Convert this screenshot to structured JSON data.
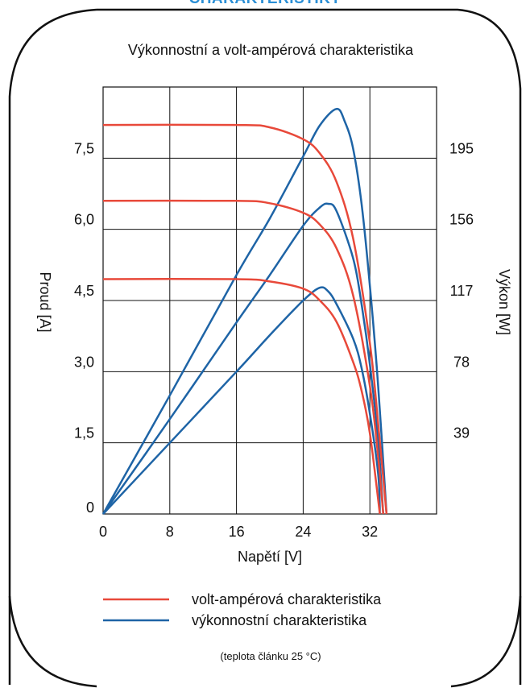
{
  "banner": "CHARAKTERISTIKY",
  "chart_data": {
    "type": "line",
    "title": "Výkonnostní a volt-ampérová charakteristika",
    "xlabel": "Napětí [V]",
    "ylabel_left": "Proud [A]",
    "ylabel_right": "Výkon [W]",
    "xlim": [
      0,
      40
    ],
    "ylim_left": [
      0,
      9
    ],
    "ylim_right": [
      0,
      234
    ],
    "x_ticks": [
      "0",
      "8",
      "16",
      "24",
      "32"
    ],
    "y_ticks_left": [
      "0",
      "1,5",
      "3,0",
      "4,5",
      "6,0",
      "7,5"
    ],
    "y_ticks_right": [
      "39",
      "78",
      "117",
      "156",
      "195"
    ],
    "grid": true,
    "legend_position": "bottom",
    "legend": [
      {
        "label": "volt-ampérová charakteristika",
        "color": "#e8493a"
      },
      {
        "label": "výkonnostní charakteristika",
        "color": "#1e64a6"
      }
    ],
    "note": "(teplota článku 25 °C)",
    "iv_series": [
      {
        "isc": 8.2,
        "voc": 34.0,
        "points": [
          [
            0,
            8.2
          ],
          [
            16,
            8.2
          ],
          [
            20,
            8.15
          ],
          [
            24,
            7.9
          ],
          [
            26,
            7.6
          ],
          [
            28,
            7.0
          ],
          [
            30,
            5.8
          ],
          [
            32,
            3.6
          ],
          [
            33,
            1.9
          ],
          [
            34,
            0
          ]
        ]
      },
      {
        "isc": 6.6,
        "voc": 33.6,
        "points": [
          [
            0,
            6.6
          ],
          [
            16,
            6.6
          ],
          [
            20,
            6.55
          ],
          [
            24,
            6.35
          ],
          [
            26,
            6.1
          ],
          [
            28,
            5.6
          ],
          [
            30,
            4.6
          ],
          [
            32,
            2.7
          ],
          [
            33,
            1.2
          ],
          [
            33.6,
            0
          ]
        ]
      },
      {
        "isc": 4.95,
        "voc": 33.2,
        "points": [
          [
            0,
            4.95
          ],
          [
            16,
            4.95
          ],
          [
            20,
            4.9
          ],
          [
            24,
            4.75
          ],
          [
            26,
            4.5
          ],
          [
            28,
            4.05
          ],
          [
            30,
            3.2
          ],
          [
            31,
            2.6
          ],
          [
            32,
            1.7
          ],
          [
            33.2,
            0
          ]
        ]
      }
    ],
    "power_series": [
      {
        "pmax": 222,
        "vmp": 28,
        "points": [
          [
            0,
            0
          ],
          [
            8,
            65
          ],
          [
            16,
            131
          ],
          [
            20,
            162
          ],
          [
            24,
            196
          ],
          [
            26,
            213
          ],
          [
            28,
            222
          ],
          [
            29,
            215
          ],
          [
            30,
            200
          ],
          [
            31,
            170
          ],
          [
            32,
            125
          ],
          [
            33,
            70
          ],
          [
            34,
            0
          ]
        ]
      },
      {
        "pmax": 170,
        "vmp": 27,
        "points": [
          [
            0,
            0
          ],
          [
            8,
            52
          ],
          [
            16,
            105
          ],
          [
            20,
            131
          ],
          [
            24,
            158
          ],
          [
            26,
            168
          ],
          [
            27,
            170
          ],
          [
            28,
            166
          ],
          [
            30,
            140
          ],
          [
            31,
            115
          ],
          [
            32,
            82
          ],
          [
            33,
            40
          ],
          [
            33.6,
            0
          ]
        ]
      },
      {
        "pmax": 124,
        "vmp": 26,
        "points": [
          [
            0,
            0
          ],
          [
            8,
            39
          ],
          [
            16,
            78
          ],
          [
            20,
            98
          ],
          [
            24,
            117
          ],
          [
            26,
            124
          ],
          [
            27,
            122
          ],
          [
            28,
            115
          ],
          [
            30,
            96
          ],
          [
            31,
            80
          ],
          [
            32,
            55
          ],
          [
            33,
            22
          ],
          [
            33.2,
            0
          ]
        ]
      }
    ]
  }
}
